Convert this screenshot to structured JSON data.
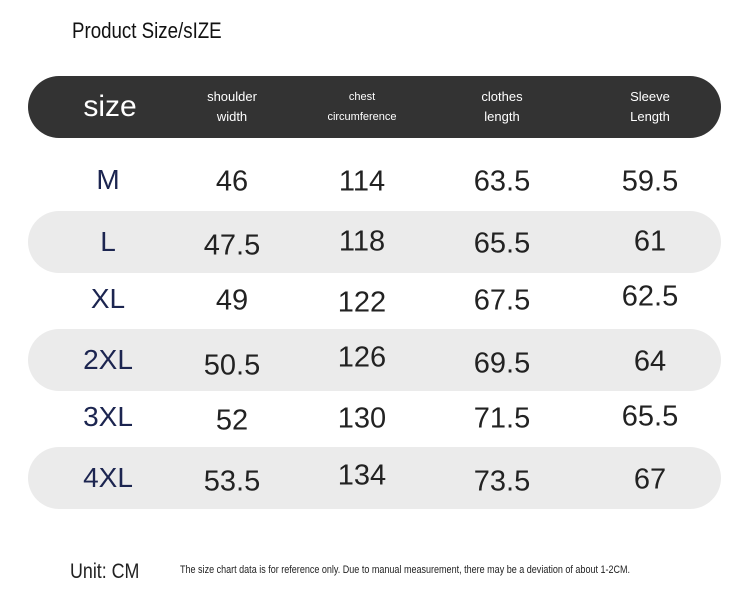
{
  "header": {
    "title": "Product Size/sIZE"
  },
  "table": {
    "columns": [
      "size",
      "shoulder width",
      "chest circumference",
      "clothes length",
      "Sleeve Length"
    ],
    "rows": [
      [
        "M",
        46,
        114,
        63.5,
        59.5
      ],
      [
        "L",
        47.5,
        118,
        65.5,
        61
      ],
      [
        "XL",
        49,
        122,
        67.5,
        62.5
      ],
      [
        "2XL",
        50.5,
        126,
        69.5,
        64
      ],
      [
        "3XL",
        52,
        130,
        71.5,
        65.5
      ],
      [
        "4XL",
        53.5,
        134,
        73.5,
        67
      ]
    ]
  },
  "footer": {
    "unit": "Unit: CM",
    "note": "The size chart data is for reference only. Due to manual measurement, there may be a deviation of about 1-2CM."
  }
}
